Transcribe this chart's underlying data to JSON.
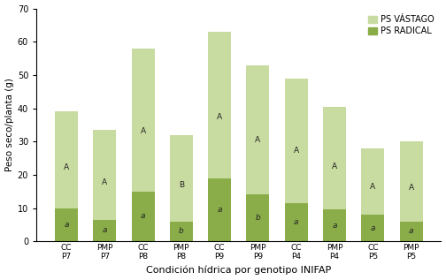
{
  "categories": [
    "CC\nP7",
    "PMP\nP7",
    "CC\nP8",
    "PMP\nP8",
    "CC\nP9",
    "PMP\nP9",
    "CC\nP4",
    "PMP\nP4",
    "CC\nP5",
    "PMP\nP5"
  ],
  "radical": [
    10.0,
    6.5,
    15.0,
    6.0,
    19.0,
    14.0,
    11.5,
    9.5,
    8.0,
    6.0
  ],
  "vastago": [
    29.0,
    27.0,
    43.0,
    26.0,
    44.0,
    39.0,
    37.5,
    31.0,
    20.0,
    24.0
  ],
  "color_vastago": "#c8dba0",
  "color_radical": "#8aad4a",
  "ylabel": "Peso seco/planta (g)",
  "xlabel": "Condición hídrica por genotipo INIFAP",
  "ylim": [
    0,
    70
  ],
  "yticks": [
    0,
    10,
    20,
    30,
    40,
    50,
    60,
    70
  ],
  "legend_vastago": "PS VÁSTAGO",
  "legend_radical": "PS RADICAL",
  "label_upper": [
    "A",
    "A",
    "A",
    "B",
    "A",
    "A",
    "A",
    "A",
    "A",
    "A"
  ],
  "label_lower": [
    "a",
    "a",
    "a",
    "b",
    "a",
    "b",
    "a",
    "a",
    "a",
    "a"
  ],
  "background_color": "#ffffff",
  "figwidth": 5.04,
  "figheight": 3.17,
  "dpi": 100
}
